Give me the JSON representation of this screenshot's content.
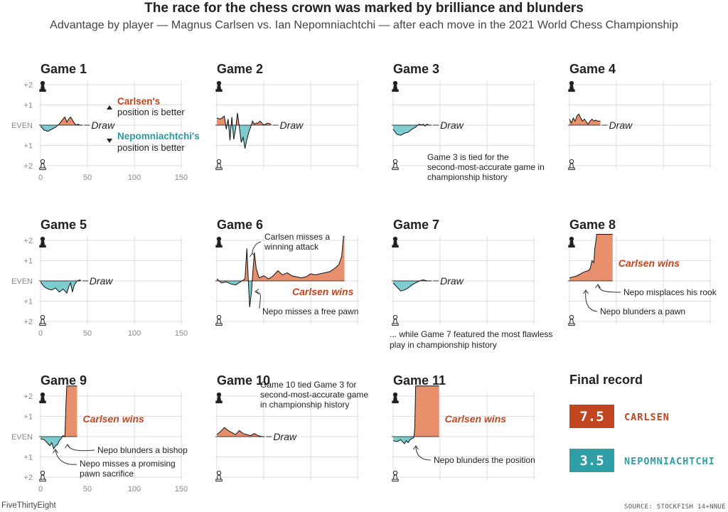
{
  "header": {
    "title": "The race for the chess crown was marked by brilliance and blunders",
    "subtitle": "Advantage by player — Magnus Carlsen vs. Ian Nepomniachtchi — after each move in the 2021 World Chess Championship"
  },
  "footer": {
    "brand": "FiveThirtyEight",
    "source": "SOURCE: STOCKFISH 14+NNUE"
  },
  "axis": {
    "y_tick_labels": [
      "+2",
      "+1",
      "EVEN",
      "+1",
      "+2"
    ],
    "x_tick_labels": [
      "0",
      "50",
      "100",
      "150"
    ]
  },
  "legend_note": {
    "carlsen_name": "Carlsen's",
    "carlsen_rest": "position is better",
    "nepo_name": "Nepomniachtchi's",
    "nepo_rest": "position is better"
  },
  "colors": {
    "carlsen": "#e8906c",
    "nepo": "#7cccd0",
    "carlsen_text": "#c1451e",
    "nepo_text": "#2a9ba1",
    "carlsen_box": "#c1451e",
    "nepo_box": "#2f9ea6",
    "grid": "#dcdcdc"
  },
  "final_record": {
    "title": "Final record",
    "entries": [
      {
        "score": "7.5",
        "name": "CARLSEN"
      },
      {
        "score": "3.5",
        "name": "NEPOMNIACHTCHI"
      }
    ]
  },
  "chart_data": {
    "type": "area",
    "x_label": "",
    "y_range": [
      -2,
      2
    ],
    "x_range": [
      0,
      150
    ],
    "note": "positive = Carlsen better (top), negative = Nepomniachtchi better (bottom)",
    "games": [
      {
        "title": "Game 1",
        "result": "Draw",
        "moves": [
          0,
          4,
          8,
          12,
          16,
          20,
          24,
          26,
          28,
          30,
          32,
          34,
          36,
          38,
          40,
          42,
          45
        ],
        "values": [
          -0.05,
          -0.25,
          -0.3,
          -0.2,
          -0.1,
          0.05,
          0.3,
          0.4,
          0.15,
          0.3,
          0.4,
          0.25,
          0.1,
          0.0,
          0.05,
          0.0,
          0.0
        ],
        "annotations": []
      },
      {
        "title": "Game 2",
        "result": "Draw",
        "moves": [
          0,
          4,
          8,
          10,
          12,
          14,
          16,
          18,
          20,
          22,
          24,
          26,
          28,
          30,
          32,
          34,
          36,
          38,
          40,
          42,
          44,
          46,
          50,
          54,
          58
        ],
        "values": [
          0.35,
          0.3,
          0.45,
          -0.2,
          0.3,
          -0.75,
          0.4,
          -0.7,
          -0.2,
          0.6,
          -0.1,
          -0.85,
          -0.6,
          -1.15,
          -0.7,
          -0.35,
          -0.1,
          0.2,
          0.05,
          0.1,
          0.1,
          0.2,
          0.0,
          0.1,
          0.05
        ],
        "annotations": []
      },
      {
        "title": "Game 3",
        "result": "Draw",
        "moves": [
          0,
          4,
          8,
          12,
          16,
          20,
          24,
          26,
          28,
          30,
          32,
          34,
          36,
          38,
          41
        ],
        "values": [
          -0.2,
          -0.45,
          -0.5,
          -0.4,
          -0.35,
          -0.2,
          -0.1,
          0.0,
          0.05,
          0.0,
          0.05,
          -0.05,
          0.05,
          0.0,
          0.0
        ],
        "annotations": [
          {
            "text": "Game 3 is tied for the second-most-accurate game in championship history"
          }
        ]
      },
      {
        "title": "Game 4",
        "result": "Draw",
        "moves": [
          0,
          2,
          4,
          6,
          8,
          10,
          12,
          14,
          16,
          18,
          20,
          22,
          24,
          26,
          28,
          30,
          33
        ],
        "values": [
          0.3,
          0.1,
          0.35,
          0.2,
          0.45,
          0.55,
          0.35,
          0.2,
          0.3,
          0.15,
          0.05,
          0.2,
          0.3,
          0.2,
          0.25,
          0.2,
          0.2
        ],
        "annotations": []
      },
      {
        "title": "Game 5",
        "result": "Draw",
        "moves": [
          0,
          4,
          8,
          12,
          16,
          20,
          24,
          28,
          30,
          32,
          34,
          36,
          39,
          42,
          43
        ],
        "values": [
          -0.05,
          -0.3,
          -0.4,
          -0.45,
          -0.35,
          -0.55,
          -0.4,
          -0.6,
          -0.3,
          -0.1,
          -0.55,
          -0.2,
          0.0,
          0.05,
          0.0
        ],
        "annotations": []
      },
      {
        "title": "Game 6",
        "result": "Carlsen wins",
        "moves": [
          0,
          5,
          10,
          15,
          20,
          25,
          30,
          32,
          34,
          35,
          37,
          38,
          40,
          42,
          45,
          50,
          55,
          60,
          65,
          70,
          75,
          80,
          85,
          90,
          95,
          100,
          105,
          110,
          115,
          120,
          125,
          130,
          133,
          135,
          136
        ],
        "values": [
          0.1,
          -0.1,
          -0.05,
          -0.15,
          -0.2,
          -0.05,
          0.1,
          1.6,
          -0.4,
          -1.3,
          -0.5,
          0.2,
          1.4,
          0.6,
          0.15,
          0.25,
          0.1,
          0.25,
          0.5,
          0.3,
          0.4,
          0.25,
          0.2,
          0.15,
          0.2,
          0.35,
          0.3,
          0.35,
          0.4,
          0.45,
          0.6,
          0.8,
          1.2,
          2.2,
          2.2
        ],
        "annotations": [
          {
            "text": "Carlsen misses a winning attack"
          },
          {
            "text": "Nepo misses a free pawn"
          }
        ]
      },
      {
        "title": "Game 7",
        "result": "Draw",
        "moves": [
          0,
          4,
          8,
          12,
          16,
          20,
          24,
          28,
          32,
          36,
          41
        ],
        "values": [
          -0.1,
          -0.3,
          -0.5,
          -0.45,
          -0.35,
          -0.2,
          -0.1,
          0.0,
          0.05,
          0.0,
          0.0
        ],
        "annotations": [
          {
            "text": "... while Game 7 featured the most flawless play in championship history"
          }
        ]
      },
      {
        "title": "Game 8",
        "result": "Carlsen wins",
        "moves": [
          0,
          4,
          8,
          12,
          16,
          20,
          22,
          24,
          26,
          27,
          28,
          29,
          30,
          46
        ],
        "values": [
          0.15,
          0.2,
          0.25,
          0.35,
          0.45,
          0.5,
          0.6,
          1.0,
          0.9,
          1.6,
          1.9,
          2.3,
          2.3,
          2.3
        ],
        "annotations": [
          {
            "text": "Nepo misplaces his rook"
          },
          {
            "text": "Nepo blunders a pawn"
          }
        ]
      },
      {
        "title": "Game 9",
        "result": "Carlsen wins",
        "moves": [
          0,
          4,
          8,
          10,
          12,
          14,
          16,
          18,
          20,
          22,
          24,
          26,
          27,
          28,
          29,
          39
        ],
        "values": [
          -0.1,
          -0.15,
          -0.35,
          -0.45,
          -0.3,
          -0.6,
          -0.45,
          -0.4,
          -0.2,
          -0.1,
          0.05,
          0.0,
          1.5,
          2.5,
          2.5,
          2.5
        ],
        "annotations": [
          {
            "text": "Nepo blunders a bishop"
          },
          {
            "text": "Nepo misses a promising pawn sacrifice"
          }
        ]
      },
      {
        "title": "Game 10",
        "result": "Draw",
        "moves": [
          0,
          4,
          8,
          12,
          16,
          20,
          24,
          28,
          32,
          36,
          40,
          44,
          48,
          51
        ],
        "values": [
          0.1,
          0.25,
          0.45,
          0.3,
          0.2,
          0.1,
          0.3,
          0.15,
          0.1,
          0.05,
          0.15,
          0.05,
          0.0,
          0.0
        ],
        "annotations": [
          {
            "text": "Game 10 tied Game 3 for second-most-accurate game in championship history"
          }
        ]
      },
      {
        "title": "Game 11",
        "result": "Carlsen wins",
        "moves": [
          0,
          4,
          8,
          12,
          14,
          16,
          18,
          20,
          22,
          23,
          24,
          25,
          49
        ],
        "values": [
          -0.2,
          -0.25,
          -0.15,
          -0.35,
          -0.2,
          -0.3,
          -0.15,
          -0.1,
          -0.05,
          0.4,
          2.5,
          2.5,
          2.5
        ],
        "annotations": [
          {
            "text": "Nepo blunders the position"
          }
        ]
      }
    ]
  }
}
